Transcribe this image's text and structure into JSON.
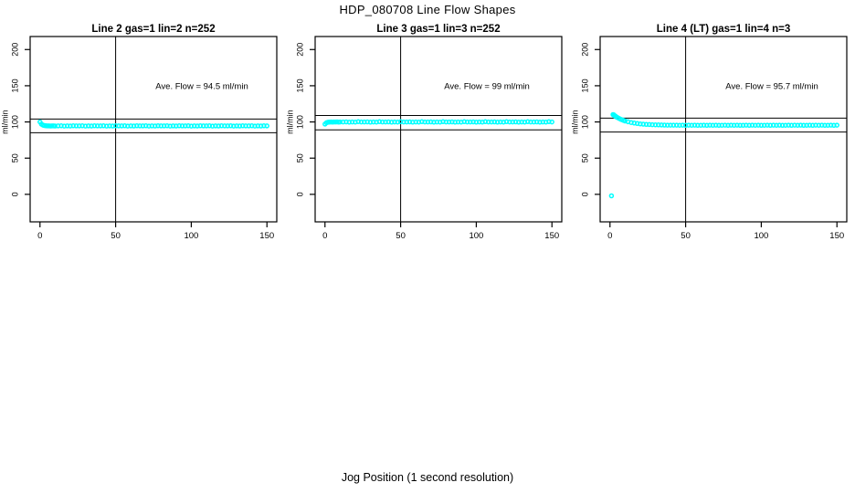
{
  "title": "HDP_080708  Line Flow Shapes",
  "xlabel": "Jog Position (1 second resolution)",
  "colors": {
    "points": "#00ffff",
    "axis": "#000000",
    "background": "#ffffff"
  },
  "chart_data": [
    {
      "type": "scatter",
      "title": "Line 2 gas=1 lin=2 n=252",
      "ylabel": "ml/min",
      "annotation": "Ave. Flow =  94.5  ml/min",
      "ave_flow": 94.5,
      "ref_lines": [
        104.0,
        85.1
      ],
      "vline_x": 50,
      "xticks": [
        0,
        50,
        100,
        150
      ],
      "yticks": [
        0,
        50,
        100,
        150,
        200
      ],
      "xlim": [
        -6.5,
        156.5
      ],
      "ylim": [
        -38,
        218
      ],
      "points": [
        [
          0,
          100
        ],
        [
          1,
          96.9
        ],
        [
          2,
          95.5
        ],
        [
          3,
          95
        ],
        [
          4,
          94.7
        ],
        [
          5,
          94.6
        ],
        [
          6,
          94.5
        ],
        [
          7,
          94.4
        ],
        [
          8,
          94.5
        ],
        [
          9,
          94.6
        ],
        [
          10,
          94.4
        ],
        [
          12,
          94.5
        ],
        [
          14,
          94.7
        ],
        [
          16,
          94.3
        ],
        [
          18,
          94.6
        ],
        [
          20,
          94.4
        ],
        [
          22,
          94.7
        ],
        [
          24,
          94.5
        ],
        [
          26,
          94.5
        ],
        [
          28,
          94.7
        ],
        [
          30,
          94.3
        ],
        [
          32,
          94.6
        ],
        [
          34,
          94.4
        ],
        [
          36,
          94.7
        ],
        [
          38,
          94.5
        ],
        [
          40,
          94.5
        ],
        [
          42,
          94.7
        ],
        [
          44,
          94.3
        ],
        [
          46,
          94.6
        ],
        [
          48,
          94.4
        ],
        [
          50,
          94.7
        ],
        [
          52,
          94.5
        ],
        [
          54,
          94.5
        ],
        [
          56,
          94.7
        ],
        [
          58,
          94.3
        ],
        [
          60,
          94.6
        ],
        [
          62,
          94.4
        ],
        [
          64,
          94.7
        ],
        [
          66,
          94.5
        ],
        [
          68,
          94.5
        ],
        [
          70,
          94.7
        ],
        [
          72,
          94.3
        ],
        [
          74,
          94.6
        ],
        [
          76,
          94.4
        ],
        [
          78,
          94.7
        ],
        [
          80,
          94.5
        ],
        [
          82,
          94.5
        ],
        [
          84,
          94.7
        ],
        [
          86,
          94.3
        ],
        [
          88,
          94.6
        ],
        [
          90,
          94.4
        ],
        [
          92,
          94.7
        ],
        [
          94,
          94.5
        ],
        [
          96,
          94.5
        ],
        [
          98,
          94.7
        ],
        [
          100,
          94.3
        ],
        [
          102,
          94.6
        ],
        [
          104,
          94.4
        ],
        [
          106,
          94.7
        ],
        [
          108,
          94.5
        ],
        [
          110,
          94.5
        ],
        [
          112,
          94.7
        ],
        [
          114,
          94.3
        ],
        [
          116,
          94.6
        ],
        [
          118,
          94.4
        ],
        [
          120,
          94.7
        ],
        [
          122,
          94.5
        ],
        [
          124,
          94.5
        ],
        [
          126,
          94.7
        ],
        [
          128,
          94.3
        ],
        [
          130,
          94.6
        ],
        [
          132,
          94.4
        ],
        [
          134,
          94.7
        ],
        [
          136,
          94.5
        ],
        [
          138,
          94.5
        ],
        [
          140,
          94.7
        ],
        [
          142,
          94.3
        ],
        [
          144,
          94.6
        ],
        [
          146,
          94.4
        ],
        [
          148,
          94.7
        ],
        [
          150,
          94.5
        ]
      ]
    },
    {
      "type": "scatter",
      "title": "Line 3 gas=1 lin=3 n=252",
      "ylabel": "ml/min",
      "annotation": "Ave. Flow =  99  ml/min",
      "ave_flow": 99,
      "ref_lines": [
        108.9,
        89.1
      ],
      "vline_x": 50,
      "xticks": [
        0,
        50,
        100,
        150
      ],
      "yticks": [
        0,
        50,
        100,
        150,
        200
      ],
      "xlim": [
        -6.5,
        156.5
      ],
      "ylim": [
        -38,
        218
      ],
      "points": [
        [
          0,
          97
        ],
        [
          1,
          99
        ],
        [
          2,
          99.6
        ],
        [
          3,
          99.8
        ],
        [
          4,
          99.9
        ],
        [
          5,
          99.8
        ],
        [
          6,
          100
        ],
        [
          7,
          99.9
        ],
        [
          8,
          100.1
        ],
        [
          9,
          99.8
        ],
        [
          10,
          99.9
        ],
        [
          12,
          99.9
        ],
        [
          14,
          100.1
        ],
        [
          16,
          99.7
        ],
        [
          18,
          100
        ],
        [
          20,
          99.8
        ],
        [
          22,
          100.4
        ],
        [
          24,
          99.9
        ],
        [
          26,
          99.9
        ],
        [
          28,
          100.1
        ],
        [
          30,
          99.7
        ],
        [
          32,
          100
        ],
        [
          34,
          99.8
        ],
        [
          36,
          100.4
        ],
        [
          38,
          99.9
        ],
        [
          40,
          99.9
        ],
        [
          42,
          100.1
        ],
        [
          44,
          99.7
        ],
        [
          46,
          100
        ],
        [
          48,
          99.8
        ],
        [
          50,
          100.4
        ],
        [
          52,
          99.9
        ],
        [
          54,
          99.9
        ],
        [
          56,
          100.1
        ],
        [
          58,
          99.7
        ],
        [
          60,
          100
        ],
        [
          62,
          99.8
        ],
        [
          64,
          100.4
        ],
        [
          66,
          99.9
        ],
        [
          68,
          99.9
        ],
        [
          70,
          100.1
        ],
        [
          72,
          99.7
        ],
        [
          74,
          100
        ],
        [
          76,
          99.8
        ],
        [
          78,
          100.4
        ],
        [
          80,
          99.9
        ],
        [
          82,
          99.9
        ],
        [
          84,
          100.1
        ],
        [
          86,
          99.7
        ],
        [
          88,
          100
        ],
        [
          90,
          99.8
        ],
        [
          92,
          100.4
        ],
        [
          94,
          99.9
        ],
        [
          96,
          99.9
        ],
        [
          98,
          100.1
        ],
        [
          100,
          99.7
        ],
        [
          102,
          100
        ],
        [
          104,
          99.8
        ],
        [
          106,
          100.4
        ],
        [
          108,
          99.9
        ],
        [
          110,
          99.9
        ],
        [
          112,
          100.1
        ],
        [
          114,
          99.7
        ],
        [
          116,
          100
        ],
        [
          118,
          99.8
        ],
        [
          120,
          100.4
        ],
        [
          122,
          99.9
        ],
        [
          124,
          99.9
        ],
        [
          126,
          100.1
        ],
        [
          128,
          99.7
        ],
        [
          130,
          100
        ],
        [
          132,
          99.8
        ],
        [
          134,
          100.4
        ],
        [
          136,
          99.9
        ],
        [
          138,
          99.9
        ],
        [
          140,
          100.1
        ],
        [
          142,
          99.7
        ],
        [
          144,
          100
        ],
        [
          146,
          99.8
        ],
        [
          148,
          100.4
        ],
        [
          150,
          99.9
        ]
      ]
    },
    {
      "type": "scatter",
      "title": "Line 4 (LT) gas=1 lin=4 n=3",
      "ylabel": "ml/min",
      "annotation": "Ave. Flow =  95.7  ml/min",
      "ave_flow": 95.7,
      "ref_lines": [
        105.3,
        86.1
      ],
      "vline_x": 50,
      "xticks": [
        0,
        50,
        100,
        150
      ],
      "yticks": [
        0,
        50,
        100,
        150,
        200
      ],
      "xlim": [
        -6.5,
        156.5
      ],
      "ylim": [
        -38,
        218
      ],
      "points": [
        [
          1,
          -2
        ],
        [
          2,
          110.2
        ],
        [
          2.5,
          109.9
        ],
        [
          3,
          108.6
        ],
        [
          3.5,
          108.1
        ],
        [
          4,
          107.2
        ],
        [
          5,
          106
        ],
        [
          6,
          104.9
        ],
        [
          7,
          103.8
        ],
        [
          8,
          103
        ],
        [
          9,
          102.1
        ],
        [
          10,
          101.4
        ],
        [
          12,
          100.2
        ],
        [
          14,
          99.2
        ],
        [
          16,
          98.4
        ],
        [
          18,
          97.8
        ],
        [
          20,
          97.3
        ],
        [
          22,
          96.9
        ],
        [
          24,
          96.6
        ],
        [
          26,
          96.4
        ],
        [
          28,
          96.2
        ],
        [
          30,
          96
        ],
        [
          32,
          95.9
        ],
        [
          34,
          95.8
        ],
        [
          36,
          95.7
        ],
        [
          38,
          95.6
        ],
        [
          40,
          95.6
        ],
        [
          42,
          95.5
        ],
        [
          44,
          95.5
        ],
        [
          46,
          95.4
        ],
        [
          48,
          95.5
        ],
        [
          50,
          95.3
        ],
        [
          52,
          95.5
        ],
        [
          54,
          95.4
        ],
        [
          56,
          95.6
        ],
        [
          58,
          95.3
        ],
        [
          60,
          95.4
        ],
        [
          62,
          95.5
        ],
        [
          64,
          95.3
        ],
        [
          66,
          95.5
        ],
        [
          68,
          95.4
        ],
        [
          70,
          95.6
        ],
        [
          72,
          95.3
        ],
        [
          74,
          95.4
        ],
        [
          76,
          95.5
        ],
        [
          78,
          95.3
        ],
        [
          80,
          95.5
        ],
        [
          82,
          95.4
        ],
        [
          84,
          95.6
        ],
        [
          86,
          95.3
        ],
        [
          88,
          95.4
        ],
        [
          90,
          95.5
        ],
        [
          92,
          95.3
        ],
        [
          94,
          95.5
        ],
        [
          96,
          95.4
        ],
        [
          98,
          95.6
        ],
        [
          100,
          95.3
        ],
        [
          102,
          95.4
        ],
        [
          104,
          95.5
        ],
        [
          106,
          95.3
        ],
        [
          108,
          95.5
        ],
        [
          110,
          95.4
        ],
        [
          112,
          95.6
        ],
        [
          114,
          95.3
        ],
        [
          116,
          95.4
        ],
        [
          118,
          95.5
        ],
        [
          120,
          95.3
        ],
        [
          122,
          95.5
        ],
        [
          124,
          95.4
        ],
        [
          126,
          95.6
        ],
        [
          128,
          95.3
        ],
        [
          130,
          95.4
        ],
        [
          132,
          95.5
        ],
        [
          134,
          95.3
        ],
        [
          136,
          95.5
        ],
        [
          138,
          95.4
        ],
        [
          140,
          95.6
        ],
        [
          142,
          95.3
        ],
        [
          144,
          95.4
        ],
        [
          146,
          95.5
        ],
        [
          148,
          95.3
        ],
        [
          150,
          95.5
        ]
      ]
    }
  ]
}
